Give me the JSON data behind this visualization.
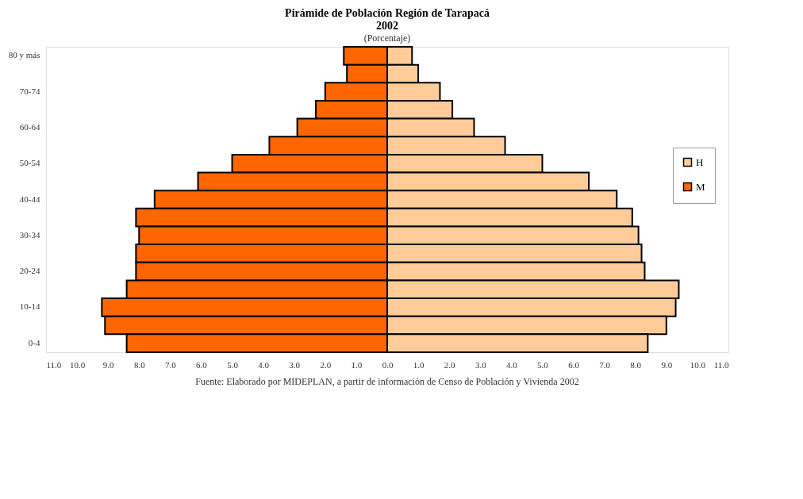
{
  "chart_data": {
    "type": "bar",
    "orientation": "horizontal",
    "stacked": true,
    "title": "Pirámide de Población Región de Tarapacá\n2002",
    "subtitle": "(Porcentaje)",
    "categories": [
      "80 y más",
      null,
      "70-74",
      null,
      "60-64",
      null,
      "50-54",
      null,
      "40-44",
      null,
      "30-34",
      null,
      "20-24",
      null,
      "10-14",
      null,
      "0-4"
    ],
    "series": [
      {
        "name": "H",
        "color": "#ffcc99",
        "values": [
          0.8,
          1.0,
          1.7,
          2.1,
          2.8,
          3.8,
          5.0,
          6.5,
          7.4,
          7.9,
          8.1,
          8.2,
          8.3,
          9.4,
          9.3,
          9.0,
          8.4
        ]
      },
      {
        "name": "M",
        "color": "#ff6600",
        "values": [
          -1.4,
          -1.3,
          -2.0,
          -2.3,
          -2.9,
          -3.8,
          -5.0,
          -6.1,
          -7.5,
          -8.1,
          -8.0,
          -8.1,
          -8.1,
          -8.4,
          -9.2,
          -9.1,
          -8.4
        ]
      }
    ],
    "xlim": [
      -11,
      11
    ],
    "xticks": [
      {
        "value": -11,
        "label": "11.0"
      },
      {
        "value": -10,
        "label": "10.0"
      },
      {
        "value": -9,
        "label": "9.0"
      },
      {
        "value": -8,
        "label": "8.0"
      },
      {
        "value": -7,
        "label": "7.0"
      },
      {
        "value": -6,
        "label": "6.0"
      },
      {
        "value": -5,
        "label": "5.0"
      },
      {
        "value": -4,
        "label": "4.0"
      },
      {
        "value": -3,
        "label": "3.0"
      },
      {
        "value": -2,
        "label": "2.0"
      },
      {
        "value": -1,
        "label": "1.0"
      },
      {
        "value": 0,
        "label": "0.0"
      },
      {
        "value": 1,
        "label": "1.0"
      },
      {
        "value": 2,
        "label": "2.0"
      },
      {
        "value": 3,
        "label": "3.0"
      },
      {
        "value": 4,
        "label": "4.0"
      },
      {
        "value": 5,
        "label": "5.0"
      },
      {
        "value": 6,
        "label": "6.0"
      },
      {
        "value": 7,
        "label": "7.0"
      },
      {
        "value": 8,
        "label": "8.0"
      },
      {
        "value": 9,
        "label": "9.0"
      },
      {
        "value": 10,
        "label": "10.0"
      },
      {
        "value": 11,
        "label": "11.0"
      }
    ],
    "grid": false,
    "legend": "right",
    "annotations": [
      "Fuente: Elaborado por MIDEPLAN, a partir de información de Censo de Población y Vivienda 2002"
    ]
  }
}
